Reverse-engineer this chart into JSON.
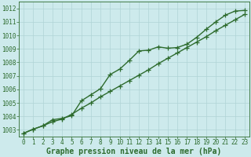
{
  "xlabel": "Graphe pression niveau de la mer (hPa)",
  "line1_x": [
    0,
    1,
    2,
    3,
    4,
    5,
    6,
    7,
    8,
    9,
    10,
    11,
    12,
    13,
    14,
    15,
    16,
    17,
    18,
    19,
    20,
    21,
    22,
    23
  ],
  "line1_y": [
    1002.75,
    1003.05,
    1003.3,
    1003.6,
    1003.8,
    1004.15,
    1004.6,
    1005.0,
    1005.45,
    1005.85,
    1006.25,
    1006.65,
    1007.05,
    1007.45,
    1007.9,
    1008.3,
    1008.7,
    1009.1,
    1009.5,
    1009.9,
    1010.35,
    1010.75,
    1011.15,
    1011.55
  ],
  "line2_x": [
    0,
    1,
    2,
    3,
    4,
    5,
    6,
    7,
    8,
    9,
    10,
    11,
    12,
    13,
    14,
    15,
    16,
    17,
    18,
    19,
    20,
    21,
    22,
    23
  ],
  "line2_y": [
    1002.75,
    1003.05,
    1003.3,
    1003.75,
    1003.85,
    1004.05,
    1005.15,
    1005.6,
    1006.05,
    1007.1,
    1007.5,
    1008.15,
    1008.85,
    1008.9,
    1009.15,
    1009.05,
    1009.1,
    1009.35,
    1009.85,
    1010.45,
    1011.0,
    1011.5,
    1011.8,
    1011.85
  ],
  "line_color": "#2d6b2d",
  "marker": "+",
  "marker_size": 4,
  "line_width": 1.0,
  "ylim": [
    1002.5,
    1012.5
  ],
  "yticks": [
    1003,
    1004,
    1005,
    1006,
    1007,
    1008,
    1009,
    1010,
    1011,
    1012
  ],
  "xlim": [
    -0.5,
    23.5
  ],
  "xticks": [
    0,
    1,
    2,
    3,
    4,
    5,
    6,
    7,
    8,
    9,
    10,
    11,
    12,
    13,
    14,
    15,
    16,
    17,
    18,
    19,
    20,
    21,
    22,
    23
  ],
  "bg_color": "#cdeaec",
  "grid_color": "#b0d4d6",
  "tick_fontsize": 5.5,
  "xlabel_fontsize": 7.0
}
